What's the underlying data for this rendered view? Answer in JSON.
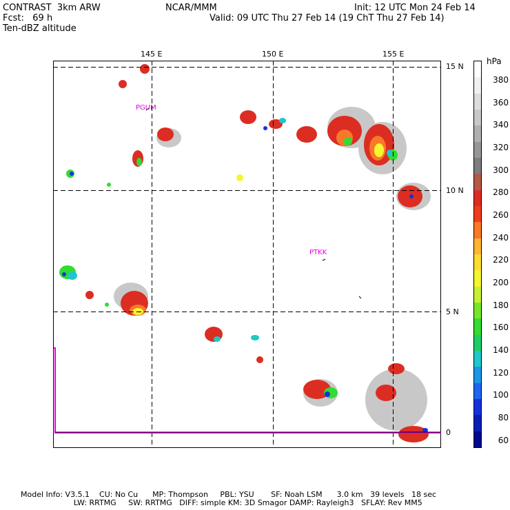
{
  "header": {
    "model": "CONTRAST  3km ARW",
    "org": "NCAR/MMM",
    "init": "Init: 12 UTC Mon 24 Feb 14",
    "fcst": "Fcst:   69 h",
    "valid": "Valid: 09 UTC Thu 27 Feb 14 (19 ChT Thu 27 Feb 14)",
    "field": "Ten-dBZ altitude"
  },
  "map": {
    "lon_labels": [
      "145 E",
      "150 E",
      "155 E"
    ],
    "lat_labels": [
      "15 N",
      "10 N",
      "5 N",
      "0"
    ],
    "stations": [
      "PGUM",
      "PTKK"
    ]
  },
  "colorbar": {
    "unit": "hPa",
    "levels": [
      "380",
      "360",
      "340",
      "320",
      "300",
      "280",
      "260",
      "240",
      "220",
      "200",
      "180",
      "160",
      "140",
      "120",
      "100",
      "80",
      "60"
    ],
    "colors": [
      "#ffffff",
      "#f0f0f0",
      "#dcdcdc",
      "#c8c8c8",
      "#b0b0b0",
      "#969696",
      "#7d7d7d",
      "#b45a46",
      "#dc2d23",
      "#f03c1e",
      "#fa7828",
      "#ffb432",
      "#ffdc32",
      "#f5f532",
      "#c8f032",
      "#78e628",
      "#32dc32",
      "#1ecc64",
      "#1ec8c8",
      "#1e96e6",
      "#1e64f0",
      "#1432dc",
      "#0a1eb4",
      "#000a8c"
    ]
  },
  "footer": {
    "line1": "Model Info: V3.5.1    CU: No Cu      MP: Thompson     PBL: YSU       SF: Noah LSM      3.0 km   39 levels   18 sec",
    "line2": "                      LW: RRTMG     SW: RRTMG   DIFF: simple KM: 3D Smagor DAMP: Rayleigh3   SFLAY: Rev MM5"
  }
}
